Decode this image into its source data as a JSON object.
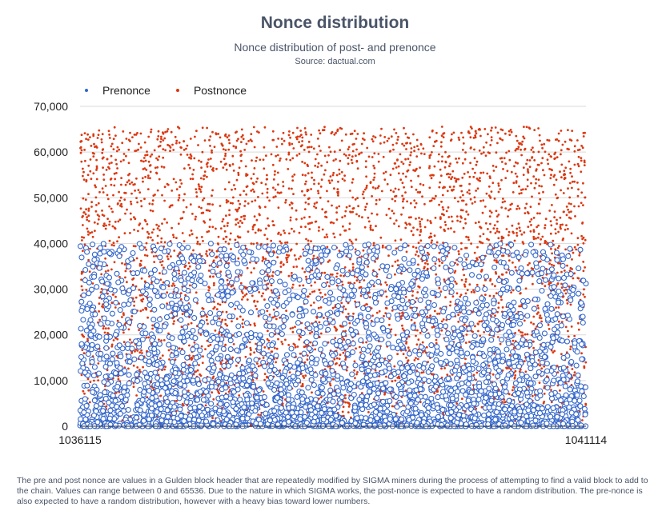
{
  "chart_data": {
    "type": "scatter",
    "title": "Nonce distribution",
    "subtitle": "Nonce distribution of post- and prenonce",
    "source": "Source: dactual.com",
    "xlabel": "",
    "ylabel": "",
    "x_range": [
      1036115,
      1041114
    ],
    "x_tick_labels": [
      "1036115",
      "1041114"
    ],
    "ylim": [
      0,
      70000
    ],
    "y_tick_values": [
      0,
      10000,
      20000,
      30000,
      40000,
      50000,
      60000,
      70000
    ],
    "y_tick_labels": [
      "0",
      "10,000",
      "20,000",
      "30,000",
      "40,000",
      "50,000",
      "60,000",
      "70,000"
    ],
    "grid": true,
    "legend_position": "top-left",
    "series": [
      {
        "name": "Prenonce",
        "color": "#3366cc",
        "marker": "hollow-circle",
        "distribution": "random, heavily biased toward lower values",
        "value_range": [
          0,
          40000
        ],
        "approx_points": 5000
      },
      {
        "name": "Postnonce",
        "color": "#dc3912",
        "marker": "filled-dot",
        "distribution": "uniform random",
        "value_range": [
          0,
          65536
        ],
        "approx_points": 5000
      }
    ],
    "note": "The pre and post nonce are values in a Gulden block header that are repeatedly modified by SIGMA miners during the process of attempting to find a valid block to add to the chain. Values can range between 0 and 65536. Due to the nature in which SIGMA works, the post-nonce is expected to have a random distribution. The pre-nonce is also expected to have a random distribution, however with a heavy bias toward lower numbers."
  }
}
